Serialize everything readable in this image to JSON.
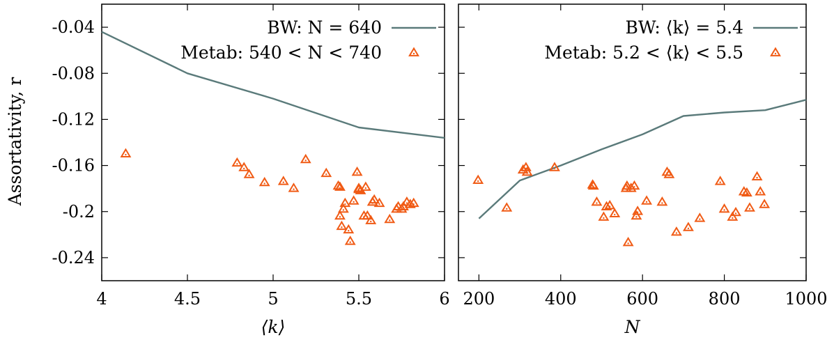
{
  "colors": {
    "bw_line": "#5a7a7a",
    "metab_marker": "#f05a14"
  },
  "chart_data": [
    {
      "type": "scatter",
      "xlabel": "⟨k⟩",
      "ylabel": "Assortativity, r",
      "xlim": [
        4,
        6
      ],
      "ylim": [
        -0.26,
        -0.02
      ],
      "xticks": [
        4,
        4.5,
        5,
        5.5,
        6
      ],
      "xtick_labels": [
        "4",
        "4.5",
        "5",
        "5.5",
        "6"
      ],
      "yticks": [
        -0.24,
        -0.2,
        -0.16,
        -0.12,
        -0.08,
        -0.04
      ],
      "ytick_labels": [
        "-0.24",
        "-0.2",
        "-0.16",
        "-0.12",
        "-0.08",
        "-0.04"
      ],
      "legend_position": "top-right",
      "series": [
        {
          "name": "BW: N = 640",
          "kind": "line",
          "x": [
            4,
            4.5,
            5,
            5.5,
            6
          ],
          "y": [
            -0.044,
            -0.08,
            -0.102,
            -0.127,
            -0.136
          ]
        },
        {
          "name": "Metab: 540 < N < 740",
          "kind": "scatter",
          "x": [
            4.14,
            4.79,
            4.83,
            4.86,
            4.95,
            5.06,
            5.12,
            5.19,
            5.31,
            5.38,
            5.39,
            5.39,
            5.4,
            5.41,
            5.42,
            5.44,
            5.45,
            5.47,
            5.49,
            5.5,
            5.5,
            5.51,
            5.53,
            5.54,
            5.55,
            5.57,
            5.58,
            5.59,
            5.62,
            5.68,
            5.72,
            5.73,
            5.75,
            5.76,
            5.78,
            5.8,
            5.82
          ],
          "y": [
            -0.15,
            -0.158,
            -0.162,
            -0.168,
            -0.175,
            -0.174,
            -0.18,
            -0.155,
            -0.167,
            -0.178,
            -0.204,
            -0.179,
            -0.213,
            -0.198,
            -0.193,
            -0.216,
            -0.226,
            -0.191,
            -0.166,
            -0.18,
            -0.181,
            -0.182,
            -0.204,
            -0.179,
            -0.204,
            -0.208,
            -0.192,
            -0.19,
            -0.193,
            -0.207,
            -0.198,
            -0.196,
            -0.198,
            -0.196,
            -0.192,
            -0.194,
            -0.193
          ]
        }
      ]
    },
    {
      "type": "scatter",
      "xlabel": "N",
      "ylabel": "",
      "xlim": [
        150,
        1000
      ],
      "ylim": [
        -0.26,
        -0.02
      ],
      "xticks": [
        200,
        400,
        600,
        800,
        1000
      ],
      "xtick_labels": [
        "200",
        "400",
        "600",
        "800",
        "1000"
      ],
      "yticks": [
        -0.24,
        -0.2,
        -0.16,
        -0.12,
        -0.08,
        -0.04
      ],
      "legend_position": "top-right",
      "series": [
        {
          "name": "BW: ⟨k⟩ = 5.4",
          "kind": "line",
          "x": [
            200,
            300,
            400,
            500,
            600,
            700,
            800,
            900,
            1000
          ],
          "y": [
            -0.206,
            -0.173,
            -0.16,
            -0.146,
            -0.133,
            -0.117,
            -0.114,
            -0.112,
            -0.103
          ]
        },
        {
          "name": "Metab: 5.2 < ⟨k⟩ < 5.5",
          "kind": "scatter",
          "x": [
            198,
            268,
            308,
            315,
            318,
            385,
            478,
            480,
            488,
            505,
            512,
            520,
            532,
            560,
            562,
            565,
            572,
            580,
            585,
            588,
            610,
            648,
            660,
            665,
            683,
            712,
            740,
            790,
            800,
            820,
            828,
            848,
            855,
            862,
            880,
            888,
            898
          ],
          "y": [
            -0.173,
            -0.197,
            -0.164,
            -0.162,
            -0.166,
            -0.162,
            -0.177,
            -0.178,
            -0.192,
            -0.205,
            -0.196,
            -0.195,
            -0.202,
            -0.18,
            -0.178,
            -0.227,
            -0.18,
            -0.178,
            -0.204,
            -0.2,
            -0.191,
            -0.192,
            -0.166,
            -0.168,
            -0.218,
            -0.214,
            -0.206,
            -0.174,
            -0.198,
            -0.205,
            -0.201,
            -0.183,
            -0.184,
            -0.197,
            -0.17,
            -0.183,
            -0.194
          ]
        }
      ]
    }
  ]
}
